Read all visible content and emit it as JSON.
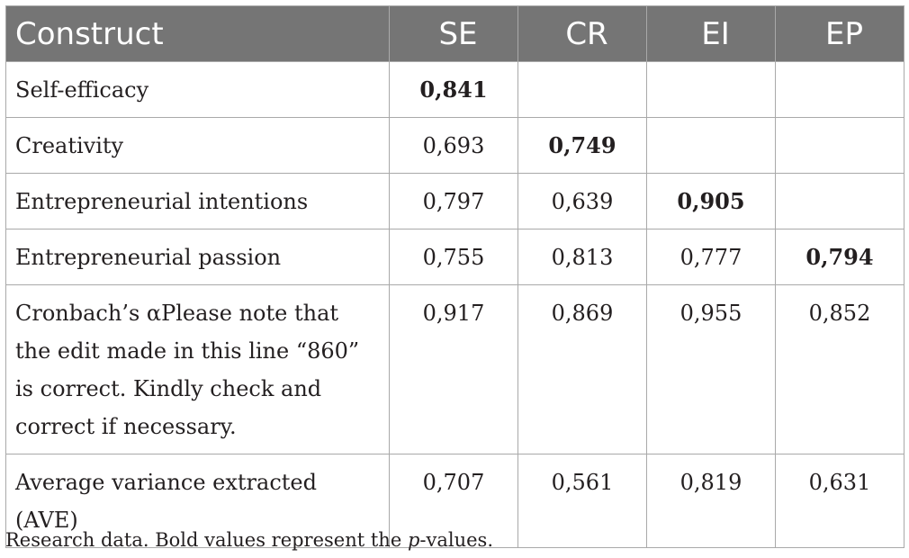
{
  "table": {
    "headers": [
      "Construct",
      "SE",
      "CR",
      "EI",
      "EP"
    ],
    "rows": [
      {
        "construct": "Self-efficacy",
        "values": [
          "0,841",
          "",
          "",
          ""
        ],
        "bold_index": 0
      },
      {
        "construct": "Creativity",
        "values": [
          "0,693",
          "0,749",
          "",
          ""
        ],
        "bold_index": 1
      },
      {
        "construct": "Entrepreneurial intentions",
        "values": [
          "0,797",
          "0,639",
          "0,905",
          ""
        ],
        "bold_index": 2
      },
      {
        "construct": "Entrepreneurial passion",
        "values": [
          "0,755",
          "0,813",
          "0,777",
          "0,794"
        ],
        "bold_index": 3
      },
      {
        "construct": "Cronbach’s αPlease note that the edit made in this line “860” is correct. Kindly check and correct if necessary.",
        "values": [
          "0,917",
          "0,869",
          "0,955",
          "0,852"
        ]
      },
      {
        "construct": "Average variance extracted (AVE)",
        "values": [
          "0,707",
          "0,561",
          "0,819",
          "0,631"
        ]
      }
    ]
  },
  "footnote": {
    "prefix": "Research data. Bold values represent the ",
    "italic": "p",
    "suffix": "-values."
  }
}
